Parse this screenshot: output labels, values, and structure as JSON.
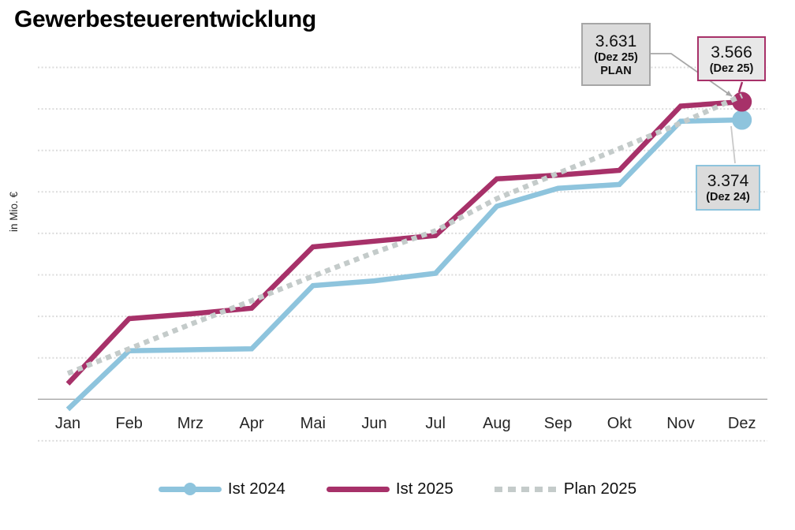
{
  "title": "Gewerbesteuerentwicklung",
  "y_axis_label": "in Mio. €",
  "chart_data": {
    "type": "line",
    "categories": [
      "Jan",
      "Feb",
      "Mrz",
      "Apr",
      "Mai",
      "Jun",
      "Jul",
      "Aug",
      "Sep",
      "Okt",
      "Nov",
      "Dez"
    ],
    "series": [
      {
        "name": "Ist 2024",
        "color": "#8ec4dd",
        "style": "solid",
        "end_marker": true,
        "values": [
          0.31,
          0.93,
          0.94,
          0.95,
          1.62,
          1.67,
          1.75,
          2.46,
          2.65,
          2.69,
          3.36,
          3.374
        ]
      },
      {
        "name": "Ist 2025",
        "color": "#a73169",
        "style": "solid",
        "end_marker": true,
        "values": [
          0.58,
          1.27,
          1.32,
          1.38,
          2.03,
          2.09,
          2.15,
          2.75,
          2.79,
          2.84,
          3.52,
          3.566
        ]
      },
      {
        "name": "Plan 2025",
        "color": "#c4cbca",
        "style": "dotted",
        "end_marker": false,
        "values": [
          0.69,
          0.95,
          1.21,
          1.46,
          1.72,
          1.97,
          2.2,
          2.54,
          2.81,
          3.07,
          3.34,
          3.631
        ]
      }
    ],
    "xlabel": "",
    "ylabel": "in Mio. €",
    "ylim": [
      0.4,
      3.95
    ],
    "grid": "horizontal-dotted",
    "legend_position": "bottom",
    "y_ticks_labeled": false
  },
  "annotations": [
    {
      "value": "3.631",
      "label": "(Dez 25)",
      "tag": "PLAN",
      "series": "Plan 2025",
      "border_color": "#a6a6a6",
      "fill": "#dbdbdb"
    },
    {
      "value": "3.566",
      "label": "(Dez 25)",
      "tag": "",
      "series": "Ist 2025",
      "border_color": "#a73169",
      "fill": "#e8e8e8"
    },
    {
      "value": "3.374",
      "label": "(Dez 24)",
      "tag": "",
      "series": "Ist 2024",
      "border_color": "#8ec4dd",
      "fill": "#dbdbdb"
    }
  ],
  "colors": {
    "grid": "#dcdcdc",
    "axis": "#aeaeae",
    "leader": "#a8a8a8",
    "title": "#000000"
  }
}
